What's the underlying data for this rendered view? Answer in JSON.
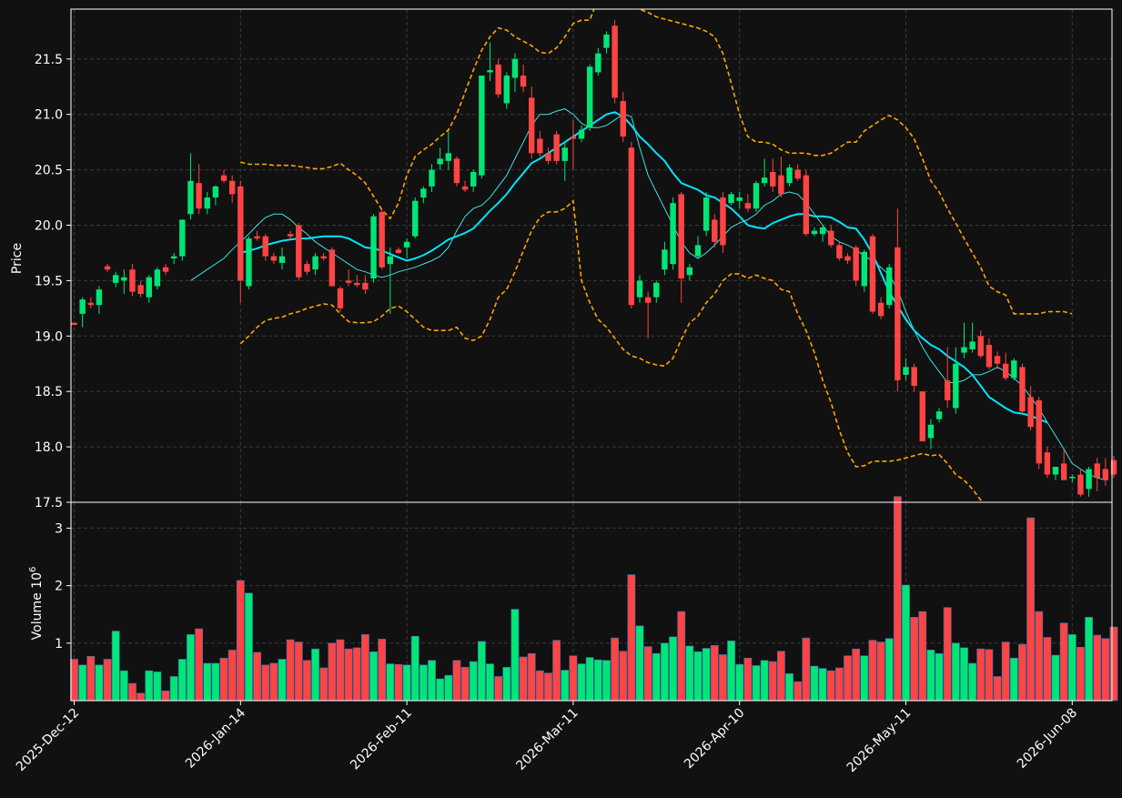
{
  "chart_data": {
    "type": "candlestick",
    "price_panel": {
      "ylabel": "Price",
      "ylim": [
        17.5,
        21.95
      ],
      "yticks": [
        17.5,
        18.0,
        18.5,
        19.0,
        19.5,
        20.0,
        20.5,
        21.0,
        21.5
      ],
      "ytick_labels": [
        "17.5",
        "18.0",
        "18.5",
        "19.0",
        "19.5",
        "20.0",
        "20.5",
        "21.0",
        "21.5"
      ],
      "grid": true
    },
    "volume_panel": {
      "ylabel": "Volume",
      "ylabel_exponent_base": "10",
      "ylabel_exponent": "6",
      "ylim": [
        0,
        3.45
      ],
      "yticks": [
        1,
        2,
        3
      ],
      "ytick_labels": [
        "1",
        "2",
        "3"
      ],
      "grid": true
    },
    "x_tick_labels": [
      {
        "index": 0,
        "label": "2025-Dec-12"
      },
      {
        "index": 20,
        "label": "2026-Jan-14"
      },
      {
        "index": 40,
        "label": "2026-Feb-11"
      },
      {
        "index": 60,
        "label": "2026-Mar-11"
      },
      {
        "index": 80,
        "label": "2026-Apr-10"
      },
      {
        "index": 100,
        "label": "2026-May-11"
      },
      {
        "index": 120,
        "label": "2026-Jun-08"
      }
    ],
    "n_candles": 125,
    "candles": [
      [
        19.12,
        19.12,
        19.1,
        19.1,
        0.72
      ],
      [
        19.2,
        19.35,
        19.08,
        19.33,
        0.62
      ],
      [
        19.3,
        19.35,
        19.25,
        19.28,
        0.77
      ],
      [
        19.28,
        19.45,
        19.2,
        19.42,
        0.62
      ],
      [
        19.63,
        19.65,
        19.58,
        19.6,
        0.72
      ],
      [
        19.48,
        19.58,
        19.44,
        19.55,
        1.21
      ],
      [
        19.5,
        19.6,
        19.38,
        19.53,
        0.52
      ],
      [
        19.6,
        19.65,
        19.36,
        19.4,
        0.3
      ],
      [
        19.46,
        19.5,
        19.35,
        19.38,
        0.13
      ],
      [
        19.35,
        19.55,
        19.3,
        19.53,
        0.52
      ],
      [
        19.45,
        19.62,
        19.42,
        19.6,
        0.5
      ],
      [
        19.62,
        19.65,
        19.55,
        19.58,
        0.17
      ],
      [
        19.7,
        19.75,
        19.65,
        19.72,
        0.42
      ],
      [
        19.72,
        20.05,
        19.68,
        20.05,
        0.72
      ],
      [
        20.1,
        20.65,
        20.05,
        20.4,
        1.15
      ],
      [
        20.38,
        20.55,
        20.1,
        20.15,
        1.25
      ],
      [
        20.15,
        20.3,
        20.1,
        20.25,
        0.65
      ],
      [
        20.25,
        20.36,
        20.18,
        20.35,
        0.65
      ],
      [
        20.45,
        20.5,
        20.38,
        20.4,
        0.74
      ],
      [
        20.4,
        20.45,
        20.2,
        20.28,
        0.88
      ],
      [
        20.35,
        20.4,
        19.3,
        19.5,
        2.09
      ],
      [
        19.45,
        19.9,
        19.42,
        19.88,
        1.87
      ],
      [
        19.9,
        19.95,
        19.86,
        19.88,
        0.84
      ],
      [
        19.9,
        19.92,
        19.68,
        19.72,
        0.62
      ],
      [
        19.72,
        19.75,
        19.65,
        19.68,
        0.65
      ],
      [
        19.66,
        19.8,
        19.6,
        19.72,
        0.72
      ],
      [
        19.92,
        19.95,
        19.88,
        19.9,
        1.06
      ],
      [
        20.0,
        20.02,
        19.5,
        19.53,
        1.02
      ],
      [
        19.65,
        19.68,
        19.55,
        19.58,
        0.7
      ],
      [
        19.6,
        19.75,
        19.55,
        19.72,
        0.9
      ],
      [
        19.72,
        19.75,
        19.68,
        19.7,
        0.57
      ],
      [
        19.78,
        19.8,
        19.45,
        19.45,
        1.0
      ],
      [
        19.43,
        19.45,
        19.22,
        19.25,
        1.06
      ],
      [
        19.5,
        19.6,
        19.45,
        19.48,
        0.9
      ],
      [
        19.48,
        19.55,
        19.44,
        19.46,
        0.92
      ],
      [
        19.48,
        19.55,
        19.38,
        19.42,
        1.15
      ],
      [
        19.52,
        20.1,
        19.48,
        20.08,
        0.85
      ],
      [
        20.12,
        20.15,
        19.6,
        19.62,
        1.07
      ],
      [
        19.65,
        19.8,
        19.2,
        19.72,
        0.64
      ],
      [
        19.78,
        19.8,
        19.74,
        19.75,
        0.63
      ],
      [
        19.8,
        19.88,
        19.7,
        19.85,
        0.62
      ],
      [
        19.9,
        20.25,
        19.88,
        20.22,
        1.12
      ],
      [
        20.25,
        20.35,
        20.2,
        20.33,
        0.62
      ],
      [
        20.35,
        20.55,
        20.3,
        20.5,
        0.7
      ],
      [
        20.55,
        20.7,
        20.5,
        20.6,
        0.38
      ],
      [
        20.58,
        20.85,
        20.5,
        20.65,
        0.44
      ],
      [
        20.6,
        20.62,
        20.35,
        20.38,
        0.7
      ],
      [
        20.35,
        20.4,
        20.3,
        20.32,
        0.58
      ],
      [
        20.35,
        20.5,
        20.3,
        20.48,
        0.68
      ],
      [
        20.45,
        21.35,
        20.42,
        21.35,
        1.03
      ],
      [
        21.38,
        21.65,
        21.3,
        21.4,
        0.64
      ],
      [
        21.45,
        21.5,
        21.15,
        21.18,
        0.42
      ],
      [
        21.1,
        21.38,
        21.05,
        21.35,
        0.58
      ],
      [
        21.33,
        21.55,
        21.2,
        21.5,
        1.59
      ],
      [
        21.35,
        21.45,
        21.2,
        21.25,
        0.76
      ],
      [
        21.15,
        21.25,
        20.6,
        20.65,
        0.82
      ],
      [
        20.78,
        20.85,
        20.62,
        20.65,
        0.52
      ],
      [
        20.65,
        20.7,
        20.55,
        20.58,
        0.48
      ],
      [
        20.82,
        20.85,
        20.55,
        20.58,
        1.05
      ],
      [
        20.58,
        20.75,
        20.4,
        20.7,
        0.53
      ],
      [
        20.8,
        20.95,
        20.5,
        20.78,
        0.78
      ],
      [
        20.78,
        20.9,
        20.75,
        20.86,
        0.64
      ],
      [
        20.88,
        21.45,
        20.85,
        21.43,
        0.75
      ],
      [
        21.38,
        21.6,
        21.35,
        21.55,
        0.71
      ],
      [
        21.6,
        21.75,
        21.55,
        21.72,
        0.7
      ],
      [
        21.8,
        21.85,
        21.1,
        21.15,
        1.09
      ],
      [
        21.12,
        21.2,
        20.75,
        20.8,
        0.86
      ],
      [
        20.7,
        20.75,
        19.25,
        19.28,
        2.19
      ],
      [
        19.35,
        19.55,
        19.3,
        19.5,
        1.3
      ],
      [
        19.35,
        19.4,
        18.98,
        19.3,
        0.94
      ],
      [
        19.35,
        19.5,
        19.3,
        19.48,
        0.82
      ],
      [
        19.6,
        19.85,
        19.55,
        19.78,
        1.0
      ],
      [
        19.65,
        20.25,
        19.6,
        20.2,
        1.11
      ],
      [
        20.28,
        20.3,
        19.3,
        19.52,
        1.55
      ],
      [
        19.55,
        19.65,
        19.5,
        19.62,
        0.95
      ],
      [
        19.72,
        19.9,
        19.7,
        19.82,
        0.85
      ],
      [
        19.95,
        20.3,
        19.9,
        20.25,
        0.91
      ],
      [
        20.05,
        20.1,
        19.8,
        19.85,
        0.96
      ],
      [
        20.25,
        20.3,
        19.75,
        19.82,
        0.8
      ],
      [
        20.2,
        20.3,
        20.18,
        20.28,
        1.04
      ],
      [
        20.22,
        20.3,
        20.15,
        20.25,
        0.63
      ],
      [
        20.2,
        20.28,
        20.12,
        20.15,
        0.74
      ],
      [
        20.15,
        20.4,
        20.12,
        20.38,
        0.61
      ],
      [
        20.38,
        20.6,
        20.35,
        20.43,
        0.7
      ],
      [
        20.48,
        20.6,
        20.3,
        20.35,
        0.68
      ],
      [
        20.45,
        20.62,
        20.25,
        20.28,
        0.86
      ],
      [
        20.38,
        20.55,
        20.35,
        20.52,
        0.47
      ],
      [
        20.5,
        20.55,
        20.4,
        20.42,
        0.33
      ],
      [
        20.45,
        20.5,
        19.9,
        19.92,
        1.09
      ],
      [
        19.92,
        19.98,
        19.9,
        19.95,
        0.6
      ],
      [
        19.92,
        20.0,
        19.85,
        19.98,
        0.56
      ],
      [
        19.95,
        20.0,
        19.8,
        19.82,
        0.52
      ],
      [
        19.82,
        19.85,
        19.68,
        19.7,
        0.57
      ],
      [
        19.72,
        19.75,
        19.65,
        19.68,
        0.78
      ],
      [
        19.8,
        19.82,
        19.45,
        19.5,
        0.9
      ],
      [
        19.45,
        19.78,
        19.4,
        19.76,
        0.78
      ],
      [
        19.9,
        19.92,
        19.2,
        19.22,
        1.05
      ],
      [
        19.3,
        19.35,
        19.15,
        19.18,
        1.02
      ],
      [
        19.28,
        19.65,
        19.25,
        19.62,
        1.08
      ],
      [
        19.8,
        20.15,
        18.5,
        18.6,
        3.55
      ],
      [
        18.65,
        18.8,
        18.6,
        18.72,
        2.01
      ],
      [
        18.72,
        18.75,
        18.5,
        18.55,
        1.45
      ],
      [
        18.5,
        18.5,
        18.05,
        18.05,
        1.55
      ],
      [
        18.08,
        18.25,
        17.98,
        18.2,
        0.88
      ],
      [
        18.25,
        18.35,
        18.22,
        18.32,
        0.82
      ],
      [
        18.6,
        18.9,
        18.35,
        18.42,
        1.62
      ],
      [
        18.35,
        18.9,
        18.3,
        18.75,
        1.0
      ],
      [
        18.85,
        19.12,
        18.8,
        18.9,
        0.92
      ],
      [
        18.88,
        19.12,
        18.85,
        18.95,
        0.65
      ],
      [
        19.0,
        19.05,
        18.8,
        18.82,
        0.9
      ],
      [
        18.92,
        18.98,
        18.7,
        18.72,
        0.89
      ],
      [
        18.82,
        18.86,
        18.7,
        18.75,
        0.42
      ],
      [
        18.75,
        18.85,
        18.6,
        18.62,
        1.02
      ],
      [
        18.62,
        18.8,
        18.6,
        18.78,
        0.74
      ],
      [
        18.72,
        18.75,
        18.3,
        18.32,
        0.98
      ],
      [
        18.45,
        18.55,
        18.15,
        18.18,
        3.18
      ],
      [
        18.42,
        18.45,
        17.8,
        17.85,
        1.55
      ],
      [
        17.95,
        18.0,
        17.72,
        17.75,
        1.1
      ],
      [
        17.75,
        17.82,
        17.7,
        17.82,
        0.79
      ],
      [
        17.85,
        17.98,
        17.7,
        17.7,
        1.35
      ],
      [
        17.72,
        17.75,
        17.68,
        17.73,
        1.15
      ],
      [
        17.75,
        17.8,
        17.55,
        17.57,
        0.93
      ],
      [
        17.62,
        17.82,
        17.55,
        17.8,
        1.45
      ],
      [
        17.85,
        17.9,
        17.6,
        17.72,
        1.14
      ],
      [
        17.8,
        17.9,
        17.65,
        17.7,
        1.08
      ],
      [
        17.88,
        17.92,
        17.72,
        17.75,
        1.28
      ]
    ],
    "ma_fast": {
      "start": 14,
      "values": [
        19.5,
        19.55,
        19.6,
        19.65,
        19.7,
        19.78,
        19.85,
        19.92,
        20.0,
        20.07,
        20.1,
        20.1,
        20.05,
        19.98,
        19.92,
        19.85,
        19.8,
        19.75,
        19.7,
        19.65,
        19.6,
        19.58,
        19.55,
        19.53,
        19.55,
        19.58,
        19.6,
        19.62,
        19.65,
        19.68,
        19.72,
        19.8,
        19.95,
        20.08,
        20.15,
        20.18,
        20.25,
        20.35,
        20.45,
        20.6,
        20.75,
        20.9,
        21.0,
        21.0,
        21.03,
        21.05,
        21.0,
        20.92,
        20.88,
        20.88,
        20.9,
        20.95,
        21.0,
        20.98,
        20.7,
        20.45,
        20.3,
        20.15,
        20.0,
        19.85,
        19.75,
        19.7,
        19.75,
        19.82,
        19.9,
        19.98,
        20.02,
        20.05,
        20.1,
        20.18,
        20.22,
        20.28,
        20.3,
        20.28,
        20.2,
        20.1,
        20.0,
        19.9,
        19.85,
        19.82,
        19.78,
        19.72,
        19.68,
        19.62,
        19.55,
        19.42,
        19.22,
        19.05,
        18.9,
        18.78,
        18.68,
        18.58,
        18.58,
        18.6,
        18.65,
        18.65,
        18.68,
        18.72,
        18.68,
        18.62,
        18.55,
        18.45,
        18.35,
        18.22,
        18.1,
        17.98,
        17.85,
        17.8,
        17.75,
        17.72,
        17.7
      ]
    },
    "ma_slow": {
      "start": 20,
      "values": [
        19.75,
        19.77,
        19.79,
        19.82,
        19.84,
        19.86,
        19.87,
        19.88,
        19.88,
        19.89,
        19.9,
        19.9,
        19.9,
        19.88,
        19.84,
        19.8,
        19.79,
        19.77,
        19.74,
        19.71,
        19.68,
        19.7,
        19.73,
        19.77,
        19.82,
        19.87,
        19.9,
        19.93,
        19.97,
        20.05,
        20.13,
        20.2,
        20.28,
        20.38,
        20.47,
        20.56,
        20.6,
        20.65,
        20.7,
        20.75,
        20.8,
        20.85,
        20.9,
        20.95,
        21.0,
        21.02,
        20.98,
        20.9,
        20.8,
        20.73,
        20.65,
        20.58,
        20.47,
        20.38,
        20.35,
        20.32,
        20.27,
        20.25,
        20.2,
        20.15,
        20.08,
        20.0,
        19.98,
        19.97,
        20.02,
        20.05,
        20.08,
        20.1,
        20.1,
        20.08,
        20.08,
        20.07,
        20.03,
        19.98,
        19.97,
        19.87,
        19.74,
        19.57,
        19.4,
        19.27,
        19.15,
        19.05,
        18.98,
        18.92,
        18.88,
        18.82,
        18.77,
        18.72,
        18.65,
        18.55,
        18.45,
        18.4,
        18.35,
        18.31,
        18.3,
        18.28,
        18.25,
        18.22
      ]
    },
    "band_upper": {
      "start": 20,
      "values": [
        20.57,
        20.55,
        20.55,
        20.55,
        20.54,
        20.54,
        20.54,
        20.53,
        20.52,
        20.51,
        20.51,
        20.53,
        20.56,
        20.5,
        20.45,
        20.38,
        20.26,
        20.14,
        20.06,
        20.2,
        20.45,
        20.62,
        20.68,
        20.73,
        20.8,
        20.86,
        21.0,
        21.2,
        21.4,
        21.58,
        21.7,
        21.78,
        21.76,
        21.7,
        21.66,
        21.62,
        21.56,
        21.55,
        21.6,
        21.7,
        21.82,
        21.85,
        21.85,
        22.05,
        22.25,
        22.2,
        22.15,
        22.05,
        21.95,
        21.92,
        21.88,
        21.86,
        21.84,
        21.82,
        21.8,
        21.78,
        21.75,
        21.7,
        21.55,
        21.28,
        21.0,
        20.8,
        20.75,
        20.75,
        20.73,
        20.68,
        20.65,
        20.65,
        20.65,
        20.63,
        20.63,
        20.65,
        20.7,
        20.75,
        20.75,
        20.85,
        20.9,
        20.95,
        20.99,
        20.95,
        20.88,
        20.78,
        20.6,
        20.4,
        20.3,
        20.15,
        20.02,
        19.88,
        19.75,
        19.62,
        19.45,
        19.4,
        19.37,
        19.2,
        19.2,
        19.2,
        19.2,
        19.22,
        19.22,
        19.22,
        19.2
      ]
    },
    "band_lower": {
      "start": 20,
      "values": [
        18.93,
        19.0,
        19.08,
        19.14,
        19.16,
        19.17,
        19.2,
        19.22,
        19.25,
        19.27,
        19.29,
        19.28,
        19.2,
        19.13,
        19.12,
        19.12,
        19.13,
        19.18,
        19.25,
        19.27,
        19.22,
        19.15,
        19.08,
        19.05,
        19.05,
        19.05,
        19.08,
        18.98,
        18.96,
        19.0,
        19.15,
        19.35,
        19.42,
        19.58,
        19.77,
        19.95,
        20.07,
        20.12,
        20.12,
        20.15,
        20.22,
        19.5,
        19.3,
        19.15,
        19.08,
        18.98,
        18.88,
        18.82,
        18.8,
        18.76,
        18.74,
        18.73,
        18.8,
        18.97,
        19.12,
        19.18,
        19.3,
        19.38,
        19.5,
        19.56,
        19.56,
        19.52,
        19.55,
        19.52,
        19.5,
        19.42,
        19.4,
        19.2,
        19.05,
        18.85,
        18.6,
        18.4,
        18.15,
        17.95,
        17.82,
        17.83,
        17.87,
        17.87,
        17.87,
        17.88,
        17.9,
        17.92,
        17.94,
        17.92,
        17.93,
        17.85,
        17.75,
        17.7,
        17.62,
        17.52,
        17.42,
        17.38,
        17.3,
        17.2,
        17.1,
        17.0
      ]
    },
    "colors": {
      "up": "#00e676",
      "down": "#ff4444",
      "ma_fast": "#40e0e0",
      "ma_slow": "#00e5ff",
      "bands": "#ffa500",
      "grid": "#3a3a3a",
      "background": "#111111",
      "axes": "#ffffff"
    }
  }
}
